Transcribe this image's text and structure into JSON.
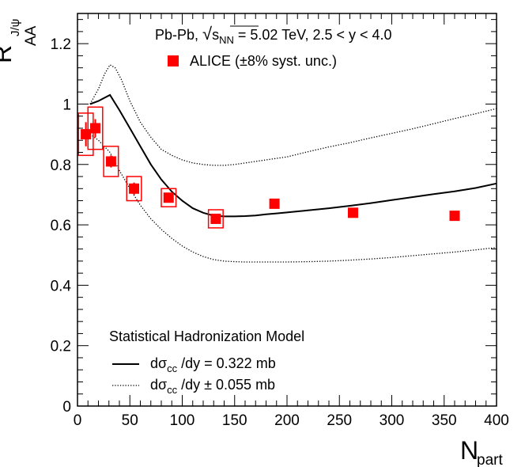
{
  "chart_data": {
    "type": "scatter",
    "xlabel": {
      "main": "N",
      "sub": "part"
    },
    "ylabel": {
      "main": "R",
      "sub": "AA",
      "sup": "J/ψ"
    },
    "xlim": [
      0,
      400
    ],
    "ylim": [
      0,
      1.3
    ],
    "x_ticks": [
      0,
      50,
      100,
      150,
      200,
      250,
      300,
      350,
      400
    ],
    "y_ticks": [
      0,
      0.2,
      0.4,
      0.6,
      0.8,
      1,
      1.2
    ],
    "y_tick_labels": [
      "0",
      "0.2",
      "0.4",
      "0.6",
      "0.8",
      "1",
      "1.2"
    ],
    "grid": false,
    "annotations": {
      "system_pre": "Pb-Pb, ",
      "system_sqrt": "s",
      "system_sqrt_sub": "NN",
      "system_post": " = 5.02 TeV, 2.5 < y < 4.0"
    },
    "legend_data": {
      "label": "ALICE (±8% syst. unc.)",
      "color": "#ff0000"
    },
    "legend_model": {
      "title": "Statistical Hadronization Model",
      "solid_pre": "dσ",
      "solid_sub": "cc",
      "solid_post": " /dy = 0.322 mb",
      "dotted_pre": "dσ",
      "dotted_sub": "cc",
      "dotted_post": " /dy ± 0.055 mb"
    },
    "series": [
      {
        "name": "ALICE (±8% syst. unc.)",
        "kind": "points",
        "color": "#ff0000",
        "points": [
          {
            "x": 8,
            "y": 0.9,
            "xerr": 3,
            "yerr_stat": 0.04,
            "syst_x": 7,
            "syst_y": 0.07
          },
          {
            "x": 17,
            "y": 0.92,
            "xerr": 3,
            "yerr_stat": 0.03,
            "syst_x": 7,
            "syst_y": 0.07
          },
          {
            "x": 32,
            "y": 0.81,
            "xerr": 3,
            "yerr_stat": 0.02,
            "syst_x": 7,
            "syst_y": 0.05
          },
          {
            "x": 54,
            "y": 0.72,
            "xerr": 3,
            "yerr_stat": 0.02,
            "syst_x": 7,
            "syst_y": 0.04
          },
          {
            "x": 87,
            "y": 0.69,
            "xerr": 3,
            "yerr_stat": 0.01,
            "syst_x": 7,
            "syst_y": 0.03
          },
          {
            "x": 132,
            "y": 0.62,
            "xerr": 3,
            "yerr_stat": 0.01,
            "syst_x": 7,
            "syst_y": 0.03
          },
          {
            "x": 188,
            "y": 0.67,
            "xerr": 3,
            "yerr_stat": 0.01,
            "syst_x": 0,
            "syst_y": 0
          },
          {
            "x": 263,
            "y": 0.64,
            "xerr": 3,
            "yerr_stat": 0.01,
            "syst_x": 0,
            "syst_y": 0
          },
          {
            "x": 360,
            "y": 0.63,
            "xerr": 3,
            "yerr_stat": 0.01,
            "syst_x": 0,
            "syst_y": 0
          }
        ]
      },
      {
        "name": "dσcc /dy = 0.322 mb",
        "kind": "solid",
        "x": [
          12,
          20,
          31,
          40,
          50,
          60,
          70,
          80,
          90,
          100,
          110,
          120,
          130,
          140,
          150,
          160,
          170,
          180,
          190,
          200,
          220,
          240,
          260,
          280,
          300,
          320,
          340,
          360,
          380,
          400
        ],
        "y": [
          1.0,
          1.01,
          1.03,
          0.98,
          0.92,
          0.86,
          0.8,
          0.75,
          0.71,
          0.68,
          0.655,
          0.64,
          0.63,
          0.628,
          0.628,
          0.629,
          0.631,
          0.635,
          0.638,
          0.641,
          0.648,
          0.655,
          0.663,
          0.672,
          0.682,
          0.692,
          0.702,
          0.711,
          0.722,
          0.737
        ]
      },
      {
        "name": "dσcc /dy + 0.055 mb",
        "kind": "dotted",
        "x": [
          12,
          20,
          26,
          31,
          36,
          42,
          50,
          60,
          70,
          80,
          90,
          100,
          110,
          120,
          130,
          140,
          150,
          160,
          180,
          200,
          220,
          240,
          260,
          280,
          300,
          320,
          340,
          360,
          380,
          400
        ],
        "y": [
          1.0,
          1.05,
          1.1,
          1.13,
          1.12,
          1.08,
          1.01,
          0.94,
          0.89,
          0.85,
          0.83,
          0.815,
          0.805,
          0.8,
          0.797,
          0.797,
          0.8,
          0.805,
          0.815,
          0.825,
          0.842,
          0.858,
          0.872,
          0.888,
          0.903,
          0.918,
          0.935,
          0.952,
          0.968,
          0.985
        ]
      },
      {
        "name": "dσcc /dy − 0.055 mb",
        "kind": "dotted",
        "x": [
          12,
          20,
          31,
          40,
          50,
          60,
          70,
          80,
          90,
          100,
          110,
          120,
          130,
          140,
          150,
          160,
          180,
          200,
          220,
          240,
          260,
          280,
          300,
          320,
          340,
          360,
          380,
          400
        ],
        "y": [
          0.9,
          0.88,
          0.84,
          0.78,
          0.72,
          0.665,
          0.62,
          0.585,
          0.555,
          0.53,
          0.51,
          0.495,
          0.485,
          0.48,
          0.478,
          0.477,
          0.477,
          0.477,
          0.478,
          0.48,
          0.483,
          0.487,
          0.492,
          0.498,
          0.504,
          0.51,
          0.517,
          0.525
        ]
      }
    ]
  }
}
